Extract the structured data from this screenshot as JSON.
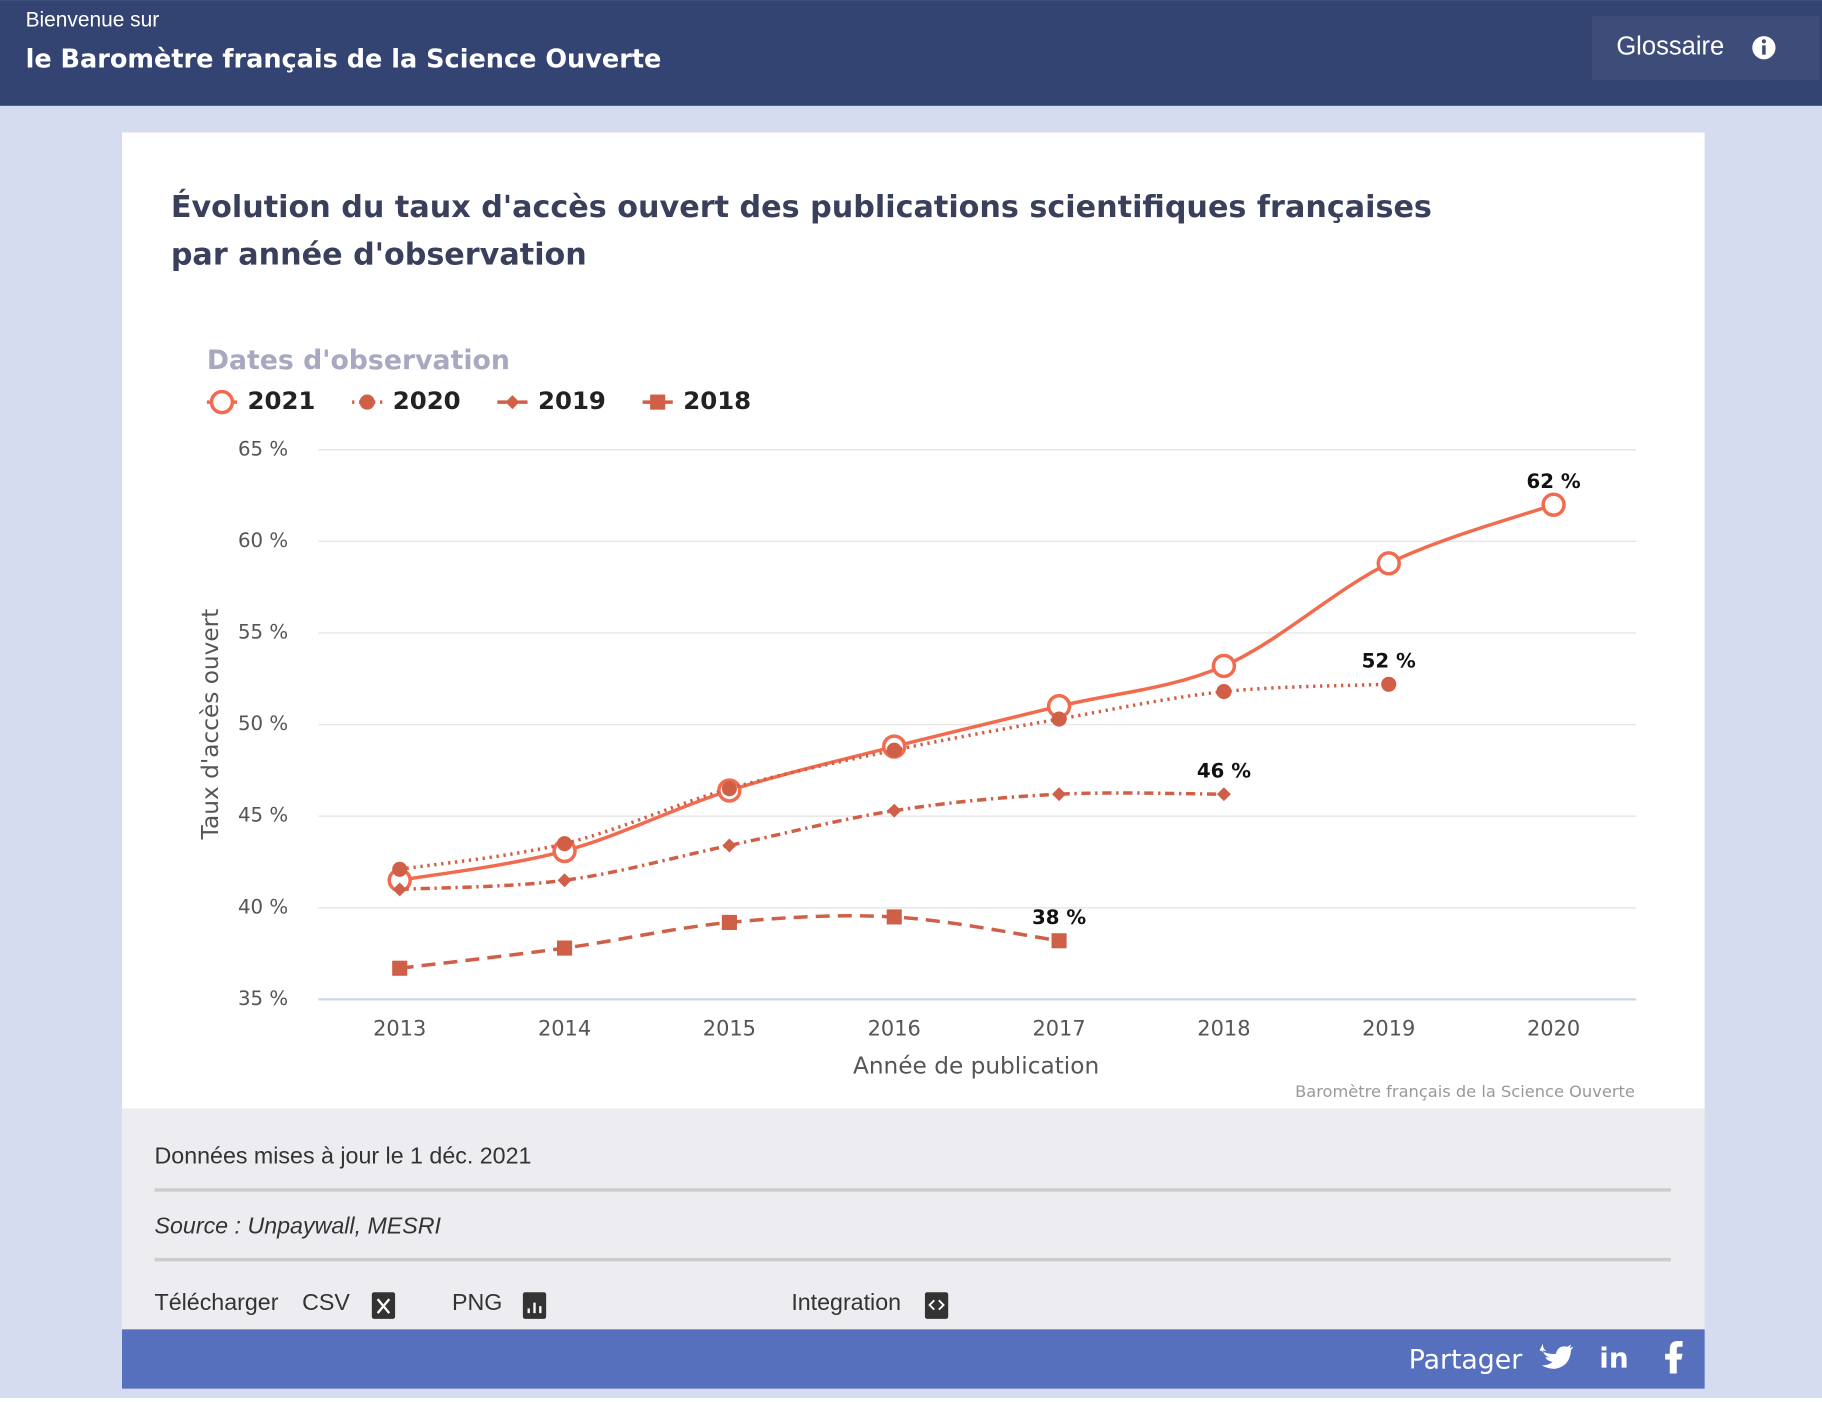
{
  "header": {
    "welcome": "Bienvenue sur",
    "site_title": "le Baromètre français de la Science Ouverte",
    "glossary": "Glossaire"
  },
  "chart_data": {
    "type": "line",
    "title": "Évolution du taux d'accès ouvert des publications scientifiques françaises par année d'observation",
    "legend_title": "Dates d'observation",
    "x_label": "Année de publication",
    "y_label": "Taux d'accès ouvert",
    "credit": "Baromètre français de la Science Ouverte",
    "categories": [
      "2013",
      "2014",
      "2015",
      "2016",
      "2017",
      "2018",
      "2019",
      "2020"
    ],
    "ylim": [
      35,
      65
    ],
    "yticks": [
      {
        "value": 35,
        "label": "35 %"
      },
      {
        "value": 40,
        "label": "40 %"
      },
      {
        "value": 45,
        "label": "45 %"
      },
      {
        "value": 50,
        "label": "50 %"
      },
      {
        "value": 55,
        "label": "55 %"
      },
      {
        "value": 60,
        "label": "60 %"
      },
      {
        "value": 65,
        "label": "65 %"
      }
    ],
    "grid": true,
    "series": [
      {
        "name": "2021",
        "color": "#f26b4f",
        "dash": "solid",
        "marker": "open-circle",
        "values": [
          41.5,
          43.1,
          46.4,
          48.8,
          51.0,
          53.2,
          58.8,
          62
        ],
        "value_labels": [
          null,
          null,
          null,
          null,
          null,
          null,
          null,
          "62 %"
        ]
      },
      {
        "name": "2020",
        "color": "#d05f47",
        "dash": "dotted",
        "marker": "circle",
        "values": [
          42.1,
          43.5,
          46.5,
          48.6,
          50.3,
          51.8,
          52.2,
          null
        ],
        "value_labels": [
          null,
          null,
          null,
          null,
          null,
          null,
          "52 %",
          null
        ]
      },
      {
        "name": "2019",
        "color": "#d05f47",
        "dash": "dash-dot",
        "marker": "diamond",
        "values": [
          41.0,
          41.5,
          43.4,
          45.3,
          46.2,
          46.2,
          null,
          null
        ],
        "value_labels": [
          null,
          null,
          null,
          null,
          null,
          "46 %",
          null,
          null
        ]
      },
      {
        "name": "2018",
        "color": "#d05f47",
        "dash": "dashed",
        "marker": "square",
        "values": [
          36.7,
          37.8,
          39.2,
          39.5,
          38.2,
          null,
          null,
          null
        ],
        "value_labels": [
          null,
          null,
          null,
          null,
          "38 %",
          null,
          null,
          null
        ]
      }
    ]
  },
  "footer": {
    "updated": "Données mises à jour le 1 déc. 2021",
    "source": "Source : Unpaywall, MESRI",
    "download": "Télécharger",
    "csv": "CSV",
    "png": "PNG",
    "integration": "Integration",
    "share": "Partager"
  }
}
